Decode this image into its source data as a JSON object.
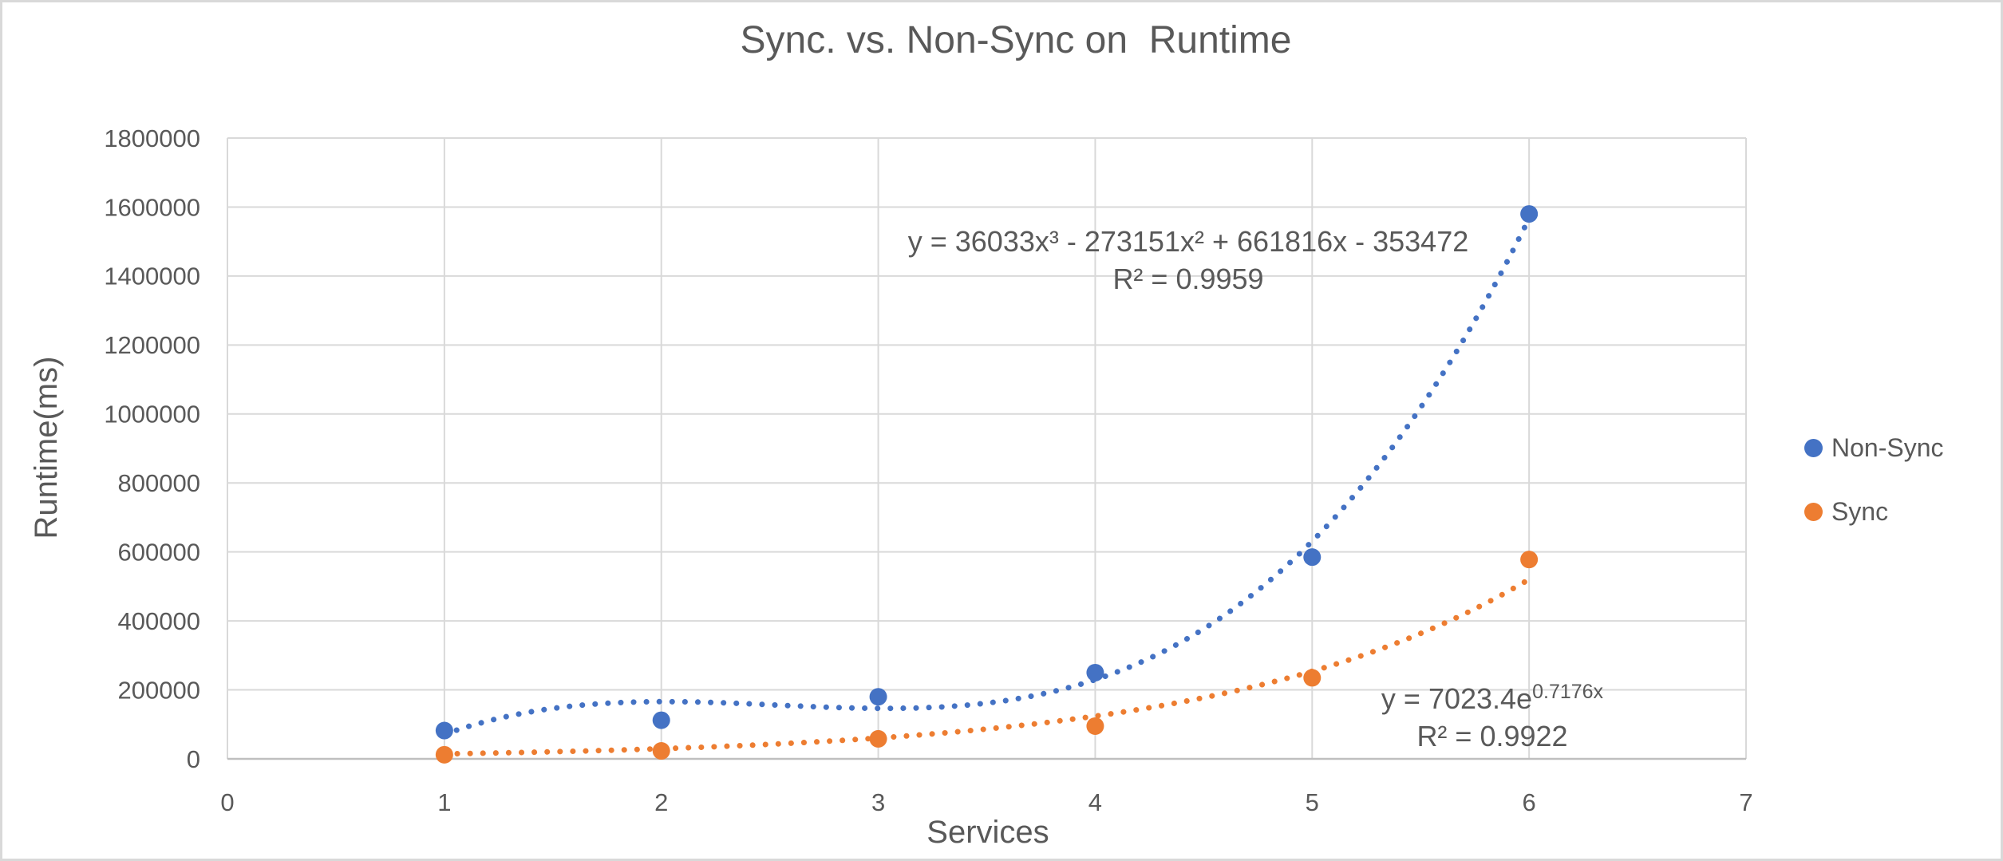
{
  "chart_data": {
    "type": "scatter",
    "title": "Sync. vs. Non-Sync on  Runtime",
    "xlabel": "Services",
    "ylabel": "Runtime(ms)",
    "xlim": [
      0,
      7
    ],
    "x_tick_step": 1,
    "x_tick_labels": [
      "0",
      "1",
      "2",
      "3",
      "4",
      "5",
      "6",
      "7"
    ],
    "ylim": [
      0,
      1800000
    ],
    "y_tick_step": 200000,
    "y_tick_labels": [
      "0",
      "200000",
      "400000",
      "600000",
      "800000",
      "1000000",
      "1200000",
      "1400000",
      "1600000",
      "1800000"
    ],
    "grid": true,
    "legend_position": "right",
    "series": [
      {
        "name": "Non-Sync",
        "color": "#4472C4",
        "marker": "circle",
        "x": [
          1,
          2,
          3,
          4,
          5,
          6
        ],
        "y": [
          82000,
          112000,
          180000,
          250000,
          585000,
          1580000
        ],
        "trendline": {
          "type": "polynomial",
          "style": "dotted",
          "equation": "y = 36033x³ - 273151x² + 661816x - 353472",
          "r2_label": "R² = 0.9959",
          "coefficients": {
            "x3": 36033,
            "x2": -273151,
            "x1": 661816,
            "x0": -353472
          },
          "x_range": [
            1,
            6
          ]
        }
      },
      {
        "name": "Sync",
        "color": "#ED7D31",
        "marker": "circle",
        "x": [
          1,
          2,
          3,
          4,
          5,
          6
        ],
        "y": [
          12000,
          23000,
          58000,
          95000,
          235000,
          578000
        ],
        "trendline": {
          "type": "exponential",
          "style": "dotted",
          "equation_base": "y = 7023.4e",
          "equation_exponent": "0.7176x",
          "r2_label": "R² = 0.9922",
          "a": 7023.4,
          "b": 0.7176,
          "x_range": [
            1,
            6
          ]
        }
      }
    ],
    "colors": {
      "text": "#595959",
      "gridline": "#D9D9D9",
      "axis_line": "#BFBFBF",
      "non_sync": "#4472C4",
      "sync": "#ED7D31"
    }
  }
}
